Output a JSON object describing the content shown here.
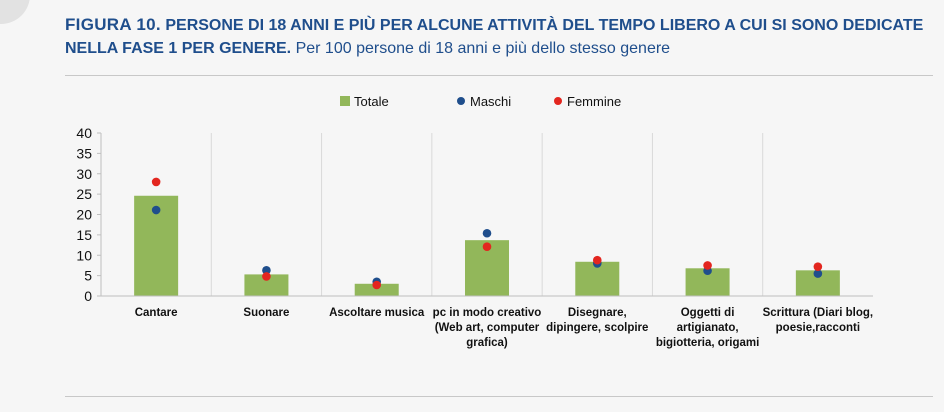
{
  "header": {
    "figure_label": "FIGURA 10.",
    "title": "PERSONE DI 18 ANNI E PIÙ PER ALCUNE ATTIVITÀ DEL TEMPO LIBERO A CUI SI SONO DEDICATE NELLA FASE 1 PER GENERE.",
    "subtitle": "Per 100 persone di 18 anni e più dello stesso genere"
  },
  "chart_data": {
    "type": "bar",
    "categories": [
      [
        "Cantare"
      ],
      [
        "Suonare"
      ],
      [
        "Ascoltare musica"
      ],
      [
        "pc in modo creativo",
        "(Web art, computer",
        "grafica)"
      ],
      [
        "Disegnare,",
        "dipingere, scolpire"
      ],
      [
        "Oggetti di",
        "artigianato,",
        "bigiotteria, origami"
      ],
      [
        "Scrittura (Diari blog,",
        "poesie,racconti"
      ]
    ],
    "series": [
      {
        "name": "Totale",
        "kind": "bar",
        "color": "#92b75a",
        "values": [
          24.6,
          5.3,
          3.0,
          13.7,
          8.4,
          6.8,
          6.3
        ]
      },
      {
        "name": "Maschi",
        "kind": "marker",
        "color": "#1f4e8c",
        "values": [
          21.1,
          6.3,
          3.5,
          15.4,
          8.0,
          6.2,
          5.5
        ]
      },
      {
        "name": "Femmine",
        "kind": "marker",
        "color": "#e3261f",
        "values": [
          28.0,
          4.8,
          2.7,
          12.1,
          8.8,
          7.5,
          7.2
        ]
      }
    ],
    "ylim": [
      0,
      40
    ],
    "yticks": [
      0,
      5,
      10,
      15,
      20,
      25,
      30,
      35,
      40
    ],
    "grid": false,
    "category_separators": true,
    "legend": {
      "position": "top-center"
    }
  }
}
